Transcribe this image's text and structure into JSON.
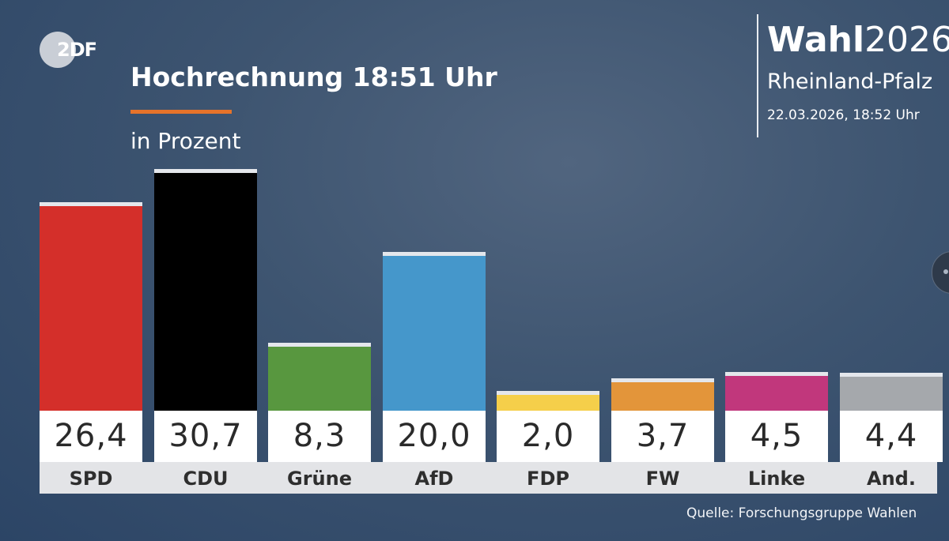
{
  "logo": {
    "text_a": "2",
    "text_b": "DF"
  },
  "header": {
    "title": "Hochrechnung 18:51 Uhr",
    "subtitle": "in Prozent",
    "brand_bold": "Wahl",
    "brand_year": "2026",
    "region": "Rheinland-Pfalz",
    "timestamp": "22.03.2026, 18:52 Uhr"
  },
  "footer": {
    "source": "Quelle: Forschungsgruppe Wahlen"
  },
  "chart_data": {
    "type": "bar",
    "title": "Hochrechnung 18:51 Uhr",
    "ylabel": "in Prozent",
    "ylim": [
      0,
      30.7
    ],
    "categories": [
      "SPD",
      "CDU",
      "Grüne",
      "AfD",
      "FDP",
      "FW",
      "Linke",
      "And."
    ],
    "values": [
      26.4,
      30.7,
      8.3,
      20.0,
      2.0,
      3.7,
      4.5,
      4.4
    ],
    "value_labels": [
      "26,4",
      "30,7",
      "8,3",
      "20,0",
      "2,0",
      "3,7",
      "4,5",
      "4,4"
    ],
    "colors": [
      "#d42f2a",
      "#000000",
      "#58973f",
      "#4597cb",
      "#f5cf4a",
      "#e3953a",
      "#c1377c",
      "#a5a8ac"
    ]
  }
}
